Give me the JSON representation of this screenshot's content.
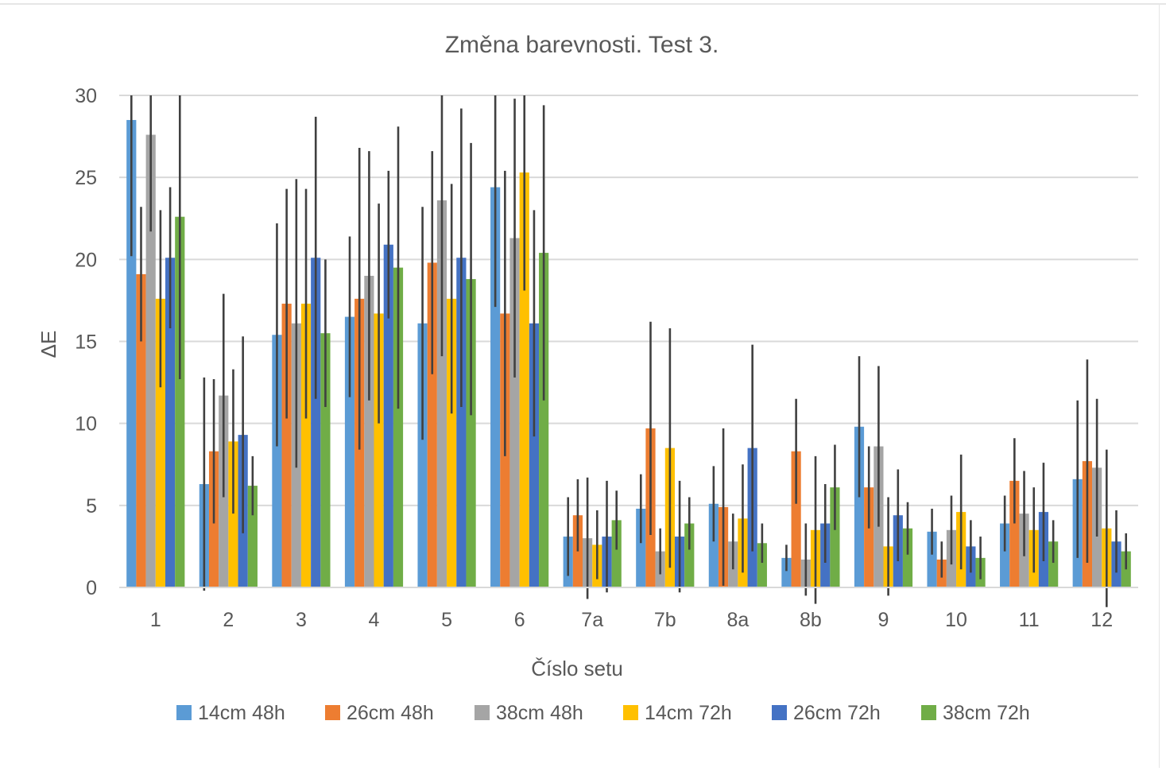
{
  "chart_data": {
    "type": "bar",
    "title": "Změna barevnosti. Test 3.",
    "xlabel": "Číslo setu",
    "ylabel": "ΔE",
    "ylim": [
      0,
      30
    ],
    "yticks": [
      0,
      5,
      10,
      15,
      20,
      25,
      30
    ],
    "grid": true,
    "legend_position": "bottom",
    "categories": [
      "1",
      "2",
      "3",
      "4",
      "5",
      "6",
      "7a",
      "7b",
      "8a",
      "8b",
      "9",
      "10",
      "11",
      "12"
    ],
    "series": [
      {
        "name": "14cm 48h",
        "color": "#5B9BD5",
        "values": [
          28.5,
          6.3,
          15.4,
          16.5,
          16.1,
          24.4,
          3.1,
          4.8,
          5.1,
          1.8,
          9.8,
          3.4,
          3.9,
          6.6
        ],
        "errors": [
          8.3,
          6.5,
          6.8,
          4.9,
          7.1,
          7.3,
          2.4,
          2.1,
          2.3,
          0.8,
          4.3,
          1.4,
          1.7,
          4.8
        ]
      },
      {
        "name": "26cm 48h",
        "color": "#ED7D31",
        "values": [
          19.1,
          8.3,
          17.3,
          17.6,
          19.8,
          16.7,
          4.4,
          9.7,
          4.9,
          8.3,
          6.1,
          1.7,
          6.5,
          7.7
        ],
        "errors": [
          4.1,
          4.4,
          7.0,
          9.2,
          6.8,
          8.7,
          2.2,
          6.5,
          4.8,
          3.2,
          2.5,
          1.1,
          2.6,
          6.2
        ]
      },
      {
        "name": "38cm 48h",
        "color": "#A5A5A5",
        "values": [
          27.6,
          11.7,
          16.1,
          19.0,
          23.6,
          21.3,
          3.0,
          2.2,
          2.8,
          1.7,
          8.6,
          3.5,
          4.5,
          7.3
        ],
        "errors": [
          5.9,
          6.2,
          8.8,
          7.6,
          9.5,
          8.5,
          3.7,
          1.4,
          1.7,
          2.2,
          4.9,
          2.1,
          2.6,
          4.2
        ]
      },
      {
        "name": "14cm 72h",
        "color": "#FFC000",
        "values": [
          17.6,
          8.9,
          17.3,
          16.7,
          17.6,
          25.3,
          2.6,
          8.5,
          4.2,
          3.5,
          2.5,
          4.6,
          3.5,
          3.6
        ],
        "errors": [
          5.4,
          4.4,
          7.0,
          6.7,
          7.0,
          7.2,
          2.1,
          7.3,
          3.3,
          4.5,
          3.0,
          3.5,
          2.6,
          4.8
        ]
      },
      {
        "name": "26cm 72h",
        "color": "#4472C4",
        "values": [
          20.1,
          9.3,
          20.1,
          20.9,
          20.1,
          16.1,
          3.1,
          3.1,
          8.5,
          3.9,
          4.4,
          2.5,
          4.6,
          2.8
        ],
        "errors": [
          4.3,
          6.0,
          8.6,
          4.5,
          9.1,
          6.9,
          3.4,
          3.4,
          6.3,
          2.4,
          2.8,
          1.6,
          3.0,
          1.9
        ]
      },
      {
        "name": "38cm 72h",
        "color": "#70AD47",
        "values": [
          22.6,
          6.2,
          15.5,
          19.5,
          18.8,
          20.4,
          4.1,
          3.9,
          2.7,
          6.1,
          3.6,
          1.8,
          2.8,
          2.2
        ],
        "errors": [
          9.9,
          1.8,
          4.5,
          8.6,
          8.3,
          9.0,
          1.8,
          1.6,
          1.2,
          2.6,
          1.6,
          1.3,
          1.3,
          1.1
        ]
      }
    ]
  }
}
